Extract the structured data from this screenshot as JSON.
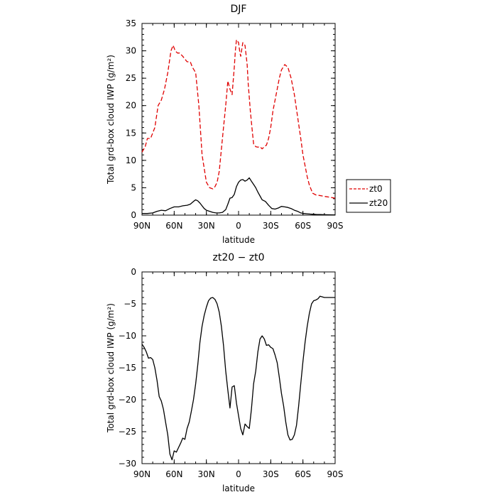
{
  "chart_data": [
    {
      "type": "line",
      "title": "DJF",
      "xlabel": "latitude",
      "ylabel": "Total grd-box cloud IWP (g/m²)",
      "xlim": [
        90,
        -90
      ],
      "ylim": [
        0,
        35
      ],
      "x_ticks": [
        90,
        60,
        30,
        0,
        -30,
        -60,
        -90
      ],
      "x_tick_labels": [
        "90N",
        "60N",
        "30N",
        "0",
        "30S",
        "60S",
        "90S"
      ],
      "y_ticks": [
        0,
        5,
        10,
        15,
        20,
        25,
        30,
        35
      ],
      "legend": "right",
      "series": [
        {
          "name": "zt0",
          "color": "#e00000",
          "dash": "dashed",
          "x": [
            90,
            87,
            85,
            82,
            78,
            75,
            72,
            69,
            66,
            63,
            61,
            59,
            57,
            55,
            52,
            50,
            48,
            45,
            43,
            40,
            37,
            34,
            30,
            27,
            24,
            22,
            20,
            18,
            16,
            14,
            12,
            10,
            8,
            6,
            4,
            3,
            2,
            0,
            -1,
            -2,
            -4,
            -6,
            -8,
            -9,
            -11,
            -13,
            -14,
            -16,
            -18,
            -20,
            -22,
            -24,
            -26,
            -28,
            -30,
            -32,
            -34,
            -36,
            -38,
            -40,
            -43,
            -46,
            -49,
            -52,
            -55,
            -58,
            -60,
            -62,
            -64,
            -66,
            -69,
            -72,
            -75,
            -78,
            -81,
            -84,
            -87,
            -90
          ],
          "y": [
            11.5,
            12.5,
            14,
            14,
            16,
            20,
            21,
            23,
            26,
            30,
            31,
            30,
            29.6,
            29.6,
            29,
            28.5,
            28,
            28,
            27,
            26,
            20,
            11,
            6,
            5,
            4.8,
            5.2,
            6,
            8,
            12,
            16,
            20,
            24.5,
            23,
            22,
            27,
            30,
            32,
            31.5,
            30,
            29,
            31.5,
            31,
            27.5,
            24,
            19,
            15,
            13,
            12.5,
            12.4,
            12.5,
            12.1,
            12.5,
            12.8,
            14,
            16,
            19,
            21,
            23,
            25,
            26.5,
            27.5,
            27,
            25,
            22,
            18,
            14,
            11,
            9,
            7,
            5.5,
            4,
            3.7,
            3.6,
            3.5,
            3.4,
            3.3,
            3.2,
            3.1
          ]
        },
        {
          "name": "zt20",
          "color": "#000000",
          "dash": "solid",
          "x": [
            90,
            85,
            80,
            76,
            72,
            68,
            64,
            60,
            56,
            52,
            48,
            45,
            42,
            40,
            38,
            36,
            34,
            32,
            30,
            27,
            24,
            21,
            18,
            15,
            12,
            10,
            8,
            6,
            4,
            2,
            0,
            -2,
            -4,
            -6,
            -8,
            -10,
            -12,
            -14,
            -16,
            -18,
            -20,
            -22,
            -25,
            -28,
            -31,
            -34,
            -37,
            -40,
            -43,
            -46,
            -49,
            -52,
            -55,
            -58,
            -61,
            -64,
            -67,
            -70,
            -73,
            -76,
            -80,
            -84,
            -88,
            -90
          ],
          "y": [
            0.3,
            0.3,
            0.4,
            0.7,
            0.9,
            0.8,
            1.2,
            1.5,
            1.5,
            1.7,
            1.8,
            2.0,
            2.5,
            2.8,
            2.6,
            2.2,
            1.7,
            1.2,
            0.9,
            0.7,
            0.5,
            0.4,
            0.4,
            0.5,
            1.0,
            2.0,
            3.1,
            3.2,
            3.8,
            5.2,
            6.0,
            6.4,
            6.5,
            6.2,
            6.4,
            6.8,
            6.2,
            5.6,
            5.0,
            4.2,
            3.5,
            2.8,
            2.5,
            1.8,
            1.2,
            1.1,
            1.3,
            1.6,
            1.5,
            1.4,
            1.2,
            0.9,
            0.7,
            0.4,
            0.3,
            0.25,
            0.2,
            0.15,
            0.12,
            0.1,
            0.08,
            0.06,
            0.05,
            0.05
          ]
        }
      ]
    },
    {
      "type": "line",
      "title": "zt20 − zt0",
      "xlabel": "latitude",
      "ylabel": "Total grd-box cloud IWP (g/m²)",
      "xlim": [
        90,
        -90
      ],
      "ylim": [
        -30,
        0
      ],
      "x_ticks": [
        90,
        60,
        30,
        0,
        -30,
        -60,
        -90
      ],
      "x_tick_labels": [
        "90N",
        "60N",
        "30N",
        "0",
        "30S",
        "60S",
        "90S"
      ],
      "y_ticks": [
        -30,
        -25,
        -20,
        -15,
        -10,
        -5,
        0
      ],
      "series": [
        {
          "color": "#000000",
          "dash": "solid",
          "x": [
            90,
            88,
            86,
            84,
            82,
            80,
            78,
            76,
            74,
            72,
            70,
            68,
            66,
            64,
            62,
            60,
            58,
            56,
            54,
            52,
            50,
            48,
            46,
            44,
            42,
            40,
            38,
            36,
            34,
            32,
            30,
            28,
            26,
            24,
            22,
            20,
            18,
            16,
            14,
            12,
            10,
            8,
            6,
            4,
            2,
            0,
            -2,
            -4,
            -6,
            -8,
            -10,
            -12,
            -14,
            -16,
            -18,
            -20,
            -22,
            -24,
            -26,
            -28,
            -30,
            -32,
            -34,
            -36,
            -38,
            -40,
            -42,
            -44,
            -46,
            -48,
            -50,
            -52,
            -54,
            -56,
            -58,
            -60,
            -62,
            -64,
            -66,
            -68,
            -70,
            -72,
            -74,
            -76,
            -78,
            -80,
            -82,
            -84,
            -86,
            -88,
            -90
          ],
          "y": [
            -11.3,
            -11.8,
            -12.5,
            -13.5,
            -13.4,
            -13.7,
            -15,
            -17,
            -19.5,
            -20.2,
            -21.5,
            -23.5,
            -25.5,
            -28.5,
            -29.4,
            -28,
            -28.2,
            -27.5,
            -26.8,
            -26,
            -26.2,
            -24.5,
            -23.5,
            -21.8,
            -20,
            -17.5,
            -14.5,
            -11,
            -8.5,
            -6.8,
            -5.5,
            -4.5,
            -4.1,
            -4,
            -4.3,
            -5,
            -6.3,
            -8.5,
            -11.5,
            -15.5,
            -18.5,
            -21.3,
            -18,
            -17.8,
            -20.5,
            -22.5,
            -24.5,
            -25.5,
            -23.8,
            -24.2,
            -24.5,
            -21.5,
            -17.5,
            -15.5,
            -12.5,
            -10.5,
            -10,
            -10.5,
            -11.5,
            -11.4,
            -11.8,
            -12,
            -13,
            -14.2,
            -16.5,
            -19,
            -21,
            -23.5,
            -25.5,
            -26.3,
            -26.2,
            -25.5,
            -24,
            -21,
            -17.5,
            -14,
            -11,
            -8.5,
            -6.5,
            -5,
            -4.5,
            -4.4,
            -4.2,
            -3.8,
            -3.9,
            -4,
            -4,
            -4,
            -4,
            -4,
            -4
          ]
        }
      ]
    }
  ]
}
